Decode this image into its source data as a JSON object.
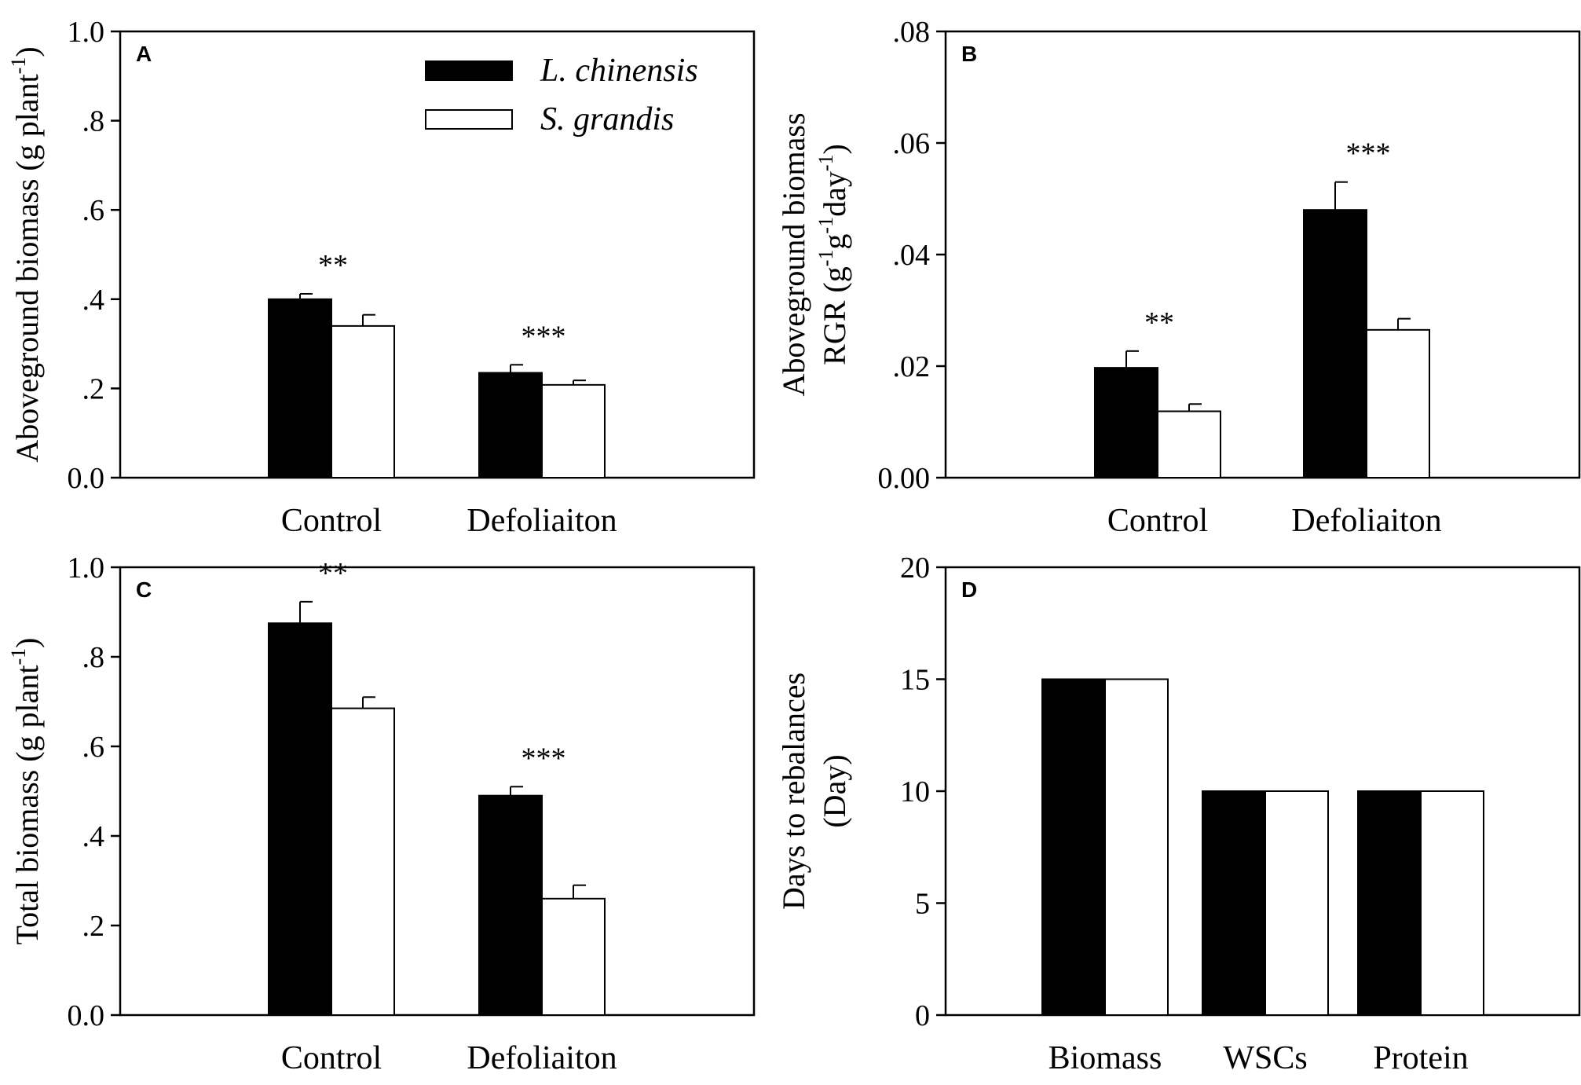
{
  "legend": {
    "series": [
      {
        "name": "L. chinensis",
        "fill": "#000000"
      },
      {
        "name": "S. grandis",
        "fill": "#ffffff"
      }
    ]
  },
  "chart_data": [
    {
      "panel": "A",
      "type": "bar",
      "categories": [
        "Control",
        "Defoliaiton"
      ],
      "series": [
        {
          "name": "L. chinensis",
          "values": [
            0.4,
            0.235
          ],
          "errors": [
            0.012,
            0.018
          ]
        },
        {
          "name": "S. grandis",
          "values": [
            0.34,
            0.208
          ],
          "errors": [
            0.025,
            0.01
          ]
        }
      ],
      "significance": [
        "**",
        "***"
      ],
      "ylabel_lines": [
        "Aboveground biomass (g plant",
        "-1",
        ")"
      ],
      "ylim": [
        0,
        1.0
      ],
      "yticks": [
        0,
        0.2,
        0.4,
        0.6,
        0.8,
        1.0
      ],
      "yticklabels": [
        "0.0",
        ".2",
        ".4",
        ".6",
        ".8",
        "1.0"
      ]
    },
    {
      "panel": "B",
      "type": "bar",
      "categories": [
        "Control",
        "Defoliaiton"
      ],
      "series": [
        {
          "name": "L. chinensis",
          "values": [
            0.0197,
            0.048
          ],
          "errors": [
            0.003,
            0.005
          ]
        },
        {
          "name": "S. grandis",
          "values": [
            0.0119,
            0.0265
          ],
          "errors": [
            0.0013,
            0.002
          ]
        }
      ],
      "significance": [
        "**",
        "***"
      ],
      "ylabel_line1": "Aboveground biomass",
      "ylabel_line2": {
        "prefix": "RGR (g",
        "sup1": "-1",
        "mid": "g",
        "sup2": "-1",
        "mid2": "day",
        "sup3": "-1",
        "suffix": ")"
      },
      "ylim": [
        0,
        0.08
      ],
      "yticks": [
        0,
        0.02,
        0.04,
        0.06,
        0.08
      ],
      "yticklabels": [
        "0.00",
        ".02",
        ".04",
        ".06",
        ".08"
      ]
    },
    {
      "panel": "C",
      "type": "bar",
      "categories": [
        "Control",
        "Defoliaiton"
      ],
      "series": [
        {
          "name": "L. chinensis",
          "values": [
            0.875,
            0.49
          ],
          "errors": [
            0.048,
            0.02
          ]
        },
        {
          "name": "S. grandis",
          "values": [
            0.685,
            0.26
          ],
          "errors": [
            0.025,
            0.03
          ]
        }
      ],
      "significance": [
        "**",
        "***"
      ],
      "ylabel_lines": [
        "Total biomass (g plant",
        "-1",
        ")"
      ],
      "ylim": [
        0,
        1.0
      ],
      "yticks": [
        0,
        0.2,
        0.4,
        0.6,
        0.8,
        1.0
      ],
      "yticklabels": [
        "0.0",
        ".2",
        ".4",
        ".6",
        ".8",
        "1.0"
      ]
    },
    {
      "panel": "D",
      "type": "bar",
      "categories": [
        "Biomass",
        "WSCs",
        "Protein"
      ],
      "series": [
        {
          "name": "L. chinensis",
          "values": [
            15,
            10,
            10
          ],
          "errors": [
            0,
            0,
            0
          ]
        },
        {
          "name": "S. grandis",
          "values": [
            15,
            10,
            10
          ],
          "errors": [
            0,
            0,
            0
          ]
        }
      ],
      "significance": [
        "",
        "",
        ""
      ],
      "ylabel_line1": "Days to rebalances",
      "ylabel_line2_text": "(Day)",
      "ylim": [
        0,
        20
      ],
      "yticks": [
        0,
        5,
        10,
        15,
        20
      ],
      "yticklabels": [
        "0",
        "5",
        "10",
        "15",
        "20"
      ]
    }
  ]
}
